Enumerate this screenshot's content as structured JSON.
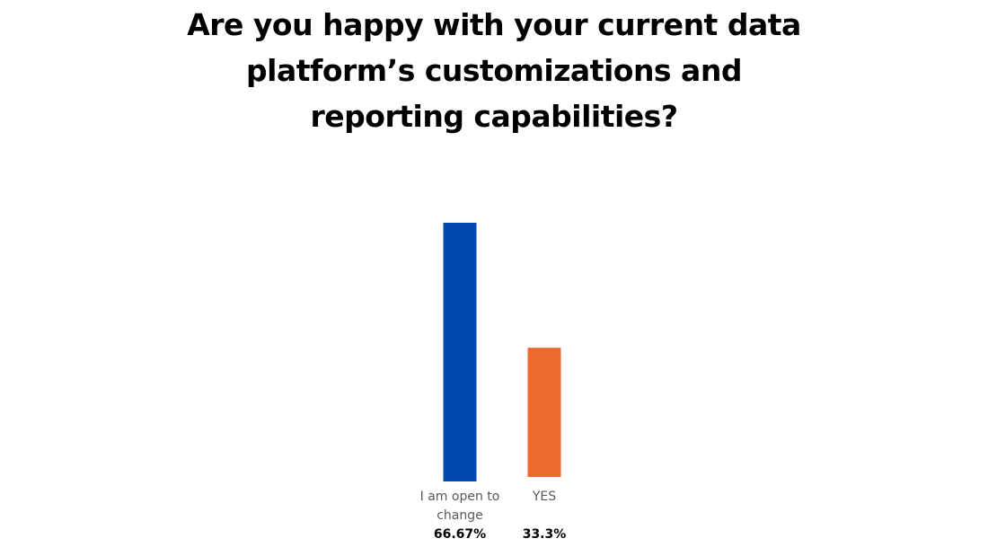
{
  "chart_data": {
    "type": "bar",
    "title": "Are you happy with your current data platform’s customizations and reporting capabilities?",
    "categories": [
      "I am open to change",
      "YES"
    ],
    "category_lines": [
      [
        "I am open to",
        "change"
      ],
      [
        "YES"
      ]
    ],
    "values": [
      66.67,
      33.3
    ],
    "value_labels": [
      "66.67%",
      "33.3%"
    ],
    "colors": [
      "#004AAD",
      "#ED6A2E"
    ],
    "ylim": [
      0,
      66.67
    ],
    "grid": false,
    "legend": "none"
  }
}
